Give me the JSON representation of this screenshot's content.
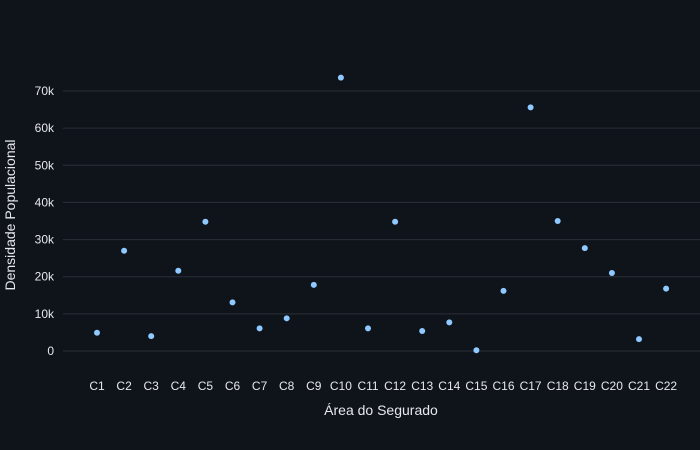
{
  "chart_data": {
    "type": "scatter",
    "title": "",
    "xlabel": "Área do Segurado",
    "ylabel": "Densidade Populacional",
    "categories": [
      "C1",
      "C2",
      "C3",
      "C4",
      "C5",
      "C6",
      "C7",
      "C8",
      "C9",
      "C10",
      "C11",
      "C12",
      "C13",
      "C14",
      "C15",
      "C16",
      "C17",
      "C18",
      "C19",
      "C20",
      "C21",
      "C22"
    ],
    "values": [
      4900,
      27000,
      4000,
      21600,
      34800,
      13100,
      6100,
      8800,
      17800,
      73600,
      6100,
      34800,
      5400,
      7700,
      200,
      16200,
      65600,
      35000,
      27700,
      21000,
      3200,
      16800
    ],
    "ylim": [
      -6000,
      80000
    ],
    "yticks": [
      0,
      10000,
      20000,
      30000,
      40000,
      50000,
      60000,
      70000
    ],
    "ytick_labels": [
      "0",
      "10k",
      "20k",
      "30k",
      "40k",
      "50k",
      "60k",
      "70k"
    ],
    "grid": true,
    "marker_color": "#8ec9ff",
    "background": "#0f131a",
    "grid_color": "#2b2f37"
  }
}
